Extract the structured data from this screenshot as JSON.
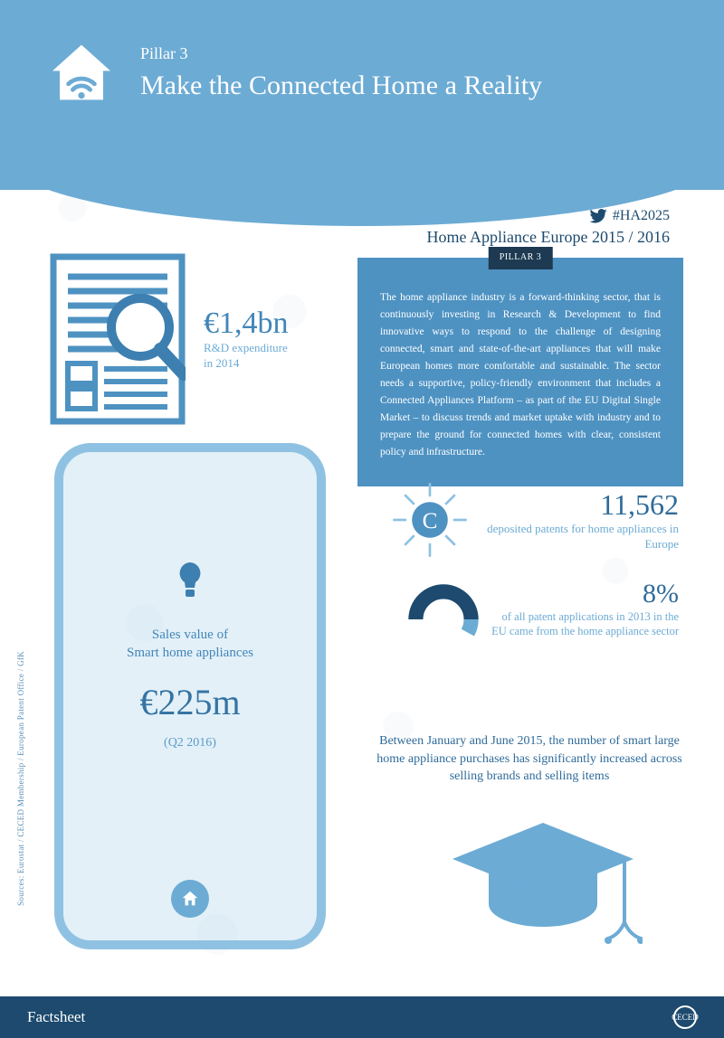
{
  "colors": {
    "header_bg": "#6cabd4",
    "accent": "#4286b8",
    "dark_blue": "#1d4a6e",
    "info_box_bg": "#4e92c2",
    "light_blue": "#8fc2e2",
    "footer_bg": "#1d4a6e",
    "text_mid": "#2f6b9a"
  },
  "header": {
    "pillar": "Pillar 3",
    "title": "Make the Connected Home a Reality"
  },
  "hashtag": {
    "tag": "#HA2025",
    "subtitle": "Home Appliance Europe 2015 / 2016"
  },
  "rd": {
    "value": "€1,4bn",
    "caption_line1": "R&D expenditure",
    "caption_line2": "in 2014"
  },
  "info_box": {
    "tag": "PILLAR 3",
    "body": "The home appliance industry is a forward-thinking sector, that is continuously investing in Research & Development to find innovative ways to respond to the challenge of designing connected, smart and state-of-the-art appliances that will make European homes more comfortable and sustainable. The sector needs a supportive, policy-friendly environment that includes a Connected Appliances Platform – as part of the EU Digital Single Market – to discuss trends and market uptake with industry and to prepare the ground for connected homes with clear, consistent policy and infrastructure."
  },
  "patents": {
    "value": "11,562",
    "caption": "deposited patents for home appliances in Europe"
  },
  "donut": {
    "percent": 8,
    "colors": {
      "main": "#1d4a6e",
      "slice": "#6cabd4",
      "bg": "transparent"
    },
    "stroke_width": 18
  },
  "eight": {
    "value": "8%",
    "caption": "of all patent applications in 2013 in the EU came from the home appliance sector"
  },
  "phone": {
    "label": "Sales value of\nSmart home appliances",
    "value": "€225m",
    "period": "(Q2 2016)"
  },
  "bottom_para": "Between January and June 2015, the number of smart large home appliance purchases has significantly increased across selling brands and selling items",
  "sources": "Sources: Eurostat / CECED Membership / European Patent Office / GfK",
  "footer": {
    "label": "Factsheet",
    "logo": "CECED"
  }
}
